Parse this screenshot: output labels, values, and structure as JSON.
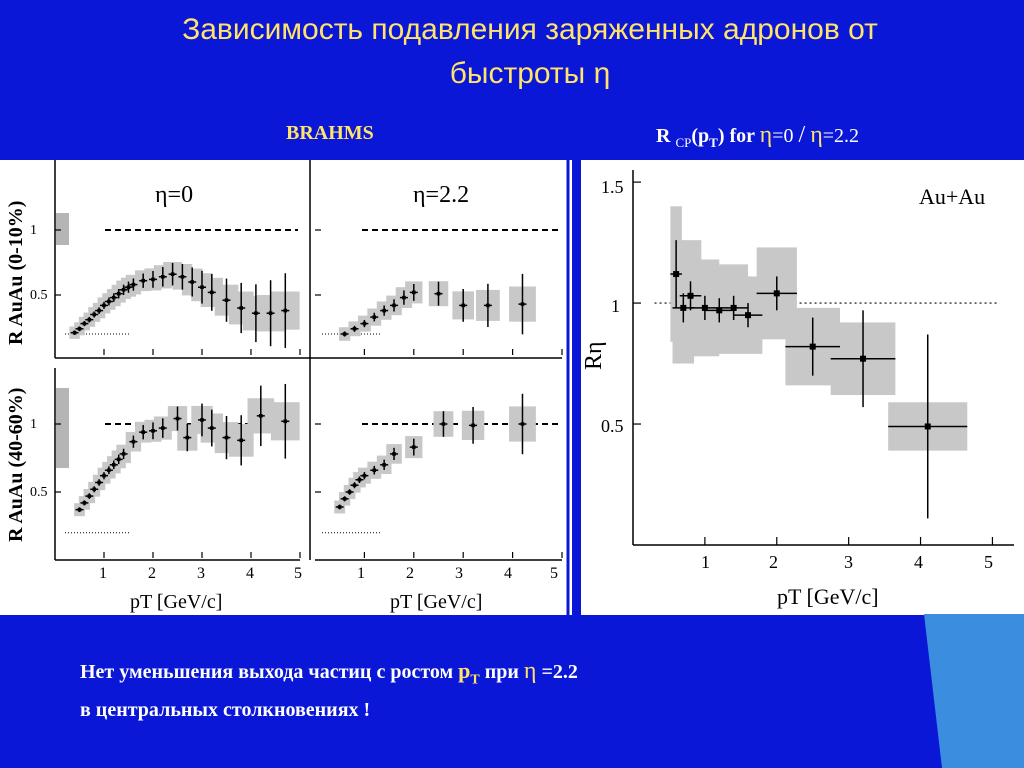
{
  "title": "Зависимость подавления заряженных адронов от быстроты η",
  "header_left": "BRAHMS",
  "header_right": {
    "r": "R",
    "cp": "CP",
    "pt": "(p",
    "t": "T",
    "close_for": ") for",
    "eta": "η",
    "eq0": "=0",
    "slash": "/",
    "eq22": "=2.2"
  },
  "bottom": {
    "line1_a": "Нет уменьшения выхода частиц с ростом",
    "p": "p",
    "t": "T",
    "line1_b": "при",
    "eta": "η",
    "line1_c": "=2.2",
    "line2": "в центральных столкновениях !"
  },
  "colors": {
    "background": "#0a17d6",
    "title": "#ffe36a",
    "band": "#c8c8c8",
    "accent_bar": "#3a8ddf"
  },
  "chart_data": [
    {
      "type": "scatter",
      "panel": "top-left",
      "label": "η=0",
      "ylabel": "R AuAu (0-10%)",
      "yticks": [
        "1",
        "0.5"
      ],
      "ylim": [
        0,
        1.6
      ],
      "xlim": [
        0,
        5
      ],
      "points": [
        {
          "x": 0.4,
          "y": 0.21
        },
        {
          "x": 0.5,
          "y": 0.24
        },
        {
          "x": 0.6,
          "y": 0.28
        },
        {
          "x": 0.7,
          "y": 0.31
        },
        {
          "x": 0.8,
          "y": 0.35
        },
        {
          "x": 0.9,
          "y": 0.38
        },
        {
          "x": 1.0,
          "y": 0.42
        },
        {
          "x": 1.1,
          "y": 0.45
        },
        {
          "x": 1.2,
          "y": 0.48
        },
        {
          "x": 1.3,
          "y": 0.51
        },
        {
          "x": 1.4,
          "y": 0.54
        },
        {
          "x": 1.5,
          "y": 0.56
        },
        {
          "x": 1.6,
          "y": 0.58
        },
        {
          "x": 1.8,
          "y": 0.61
        },
        {
          "x": 2.0,
          "y": 0.62
        },
        {
          "x": 2.2,
          "y": 0.64
        },
        {
          "x": 2.4,
          "y": 0.66
        },
        {
          "x": 2.6,
          "y": 0.64
        },
        {
          "x": 2.8,
          "y": 0.6
        },
        {
          "x": 3.0,
          "y": 0.56
        },
        {
          "x": 3.2,
          "y": 0.52
        },
        {
          "x": 3.5,
          "y": 0.46
        },
        {
          "x": 3.8,
          "y": 0.4
        },
        {
          "x": 4.1,
          "y": 0.36
        },
        {
          "x": 4.4,
          "y": 0.36
        },
        {
          "x": 4.7,
          "y": 0.38
        }
      ]
    },
    {
      "type": "scatter",
      "panel": "top-right",
      "label": "η=2.2",
      "ylim": [
        0,
        1.6
      ],
      "xlim": [
        0,
        5
      ],
      "points": [
        {
          "x": 0.6,
          "y": 0.2
        },
        {
          "x": 0.8,
          "y": 0.24
        },
        {
          "x": 1.0,
          "y": 0.28
        },
        {
          "x": 1.2,
          "y": 0.33
        },
        {
          "x": 1.4,
          "y": 0.38
        },
        {
          "x": 1.6,
          "y": 0.42
        },
        {
          "x": 1.8,
          "y": 0.48
        },
        {
          "x": 2.0,
          "y": 0.52
        },
        {
          "x": 2.5,
          "y": 0.51
        },
        {
          "x": 3.0,
          "y": 0.42
        },
        {
          "x": 3.5,
          "y": 0.42
        },
        {
          "x": 4.2,
          "y": 0.43
        }
      ]
    },
    {
      "type": "scatter",
      "panel": "bottom-left",
      "ylabel": "R AuAu (40-60%)",
      "yticks": [
        "1",
        "0.5"
      ],
      "xlabel": "pT [GeV/c]",
      "xticks": [
        "1",
        "2",
        "3",
        "4",
        "5"
      ],
      "ylim": [
        0,
        1.6
      ],
      "xlim": [
        0,
        5
      ],
      "points": [
        {
          "x": 0.5,
          "y": 0.37
        },
        {
          "x": 0.6,
          "y": 0.42
        },
        {
          "x": 0.7,
          "y": 0.47
        },
        {
          "x": 0.8,
          "y": 0.52
        },
        {
          "x": 0.9,
          "y": 0.57
        },
        {
          "x": 1.0,
          "y": 0.62
        },
        {
          "x": 1.1,
          "y": 0.66
        },
        {
          "x": 1.2,
          "y": 0.7
        },
        {
          "x": 1.3,
          "y": 0.74
        },
        {
          "x": 1.4,
          "y": 0.78
        },
        {
          "x": 1.6,
          "y": 0.87
        },
        {
          "x": 1.8,
          "y": 0.94
        },
        {
          "x": 2.0,
          "y": 0.95
        },
        {
          "x": 2.2,
          "y": 0.97
        },
        {
          "x": 2.5,
          "y": 1.04
        },
        {
          "x": 2.7,
          "y": 0.9
        },
        {
          "x": 3.0,
          "y": 1.03
        },
        {
          "x": 3.2,
          "y": 0.97
        },
        {
          "x": 3.5,
          "y": 0.9
        },
        {
          "x": 3.8,
          "y": 0.88
        },
        {
          "x": 4.2,
          "y": 1.06
        },
        {
          "x": 4.7,
          "y": 1.02
        }
      ]
    },
    {
      "type": "scatter",
      "panel": "bottom-right",
      "xlabel": "pT [GeV/c]",
      "xticks": [
        "1",
        "2",
        "3",
        "4",
        "5"
      ],
      "ylim": [
        0,
        1.6
      ],
      "xlim": [
        0,
        5
      ],
      "points": [
        {
          "x": 0.5,
          "y": 0.39
        },
        {
          "x": 0.6,
          "y": 0.45
        },
        {
          "x": 0.7,
          "y": 0.5
        },
        {
          "x": 0.8,
          "y": 0.55
        },
        {
          "x": 0.9,
          "y": 0.59
        },
        {
          "x": 1.0,
          "y": 0.62
        },
        {
          "x": 1.2,
          "y": 0.66
        },
        {
          "x": 1.4,
          "y": 0.7
        },
        {
          "x": 1.6,
          "y": 0.78
        },
        {
          "x": 2.0,
          "y": 0.83
        },
        {
          "x": 2.6,
          "y": 1.0
        },
        {
          "x": 3.2,
          "y": 0.99
        },
        {
          "x": 4.2,
          "y": 1.0
        }
      ]
    },
    {
      "type": "scatter",
      "panel": "right",
      "label": "Au+Au",
      "ylabel": "Rη",
      "xlabel": "pT [GeV/c]",
      "xticks": [
        "1",
        "2",
        "3",
        "4",
        "5"
      ],
      "yticks": [
        "1.5",
        "1",
        "0.5"
      ],
      "xlim": [
        0,
        5.3
      ],
      "ylim": [
        0,
        1.55
      ],
      "points": [
        {
          "x": 0.6,
          "y": 1.12,
          "err": 0.14,
          "band": 0.28
        },
        {
          "x": 0.7,
          "y": 0.98,
          "err": 0.06,
          "band": 0.23
        },
        {
          "x": 0.8,
          "y": 1.03,
          "err": 0.06,
          "band": 0.23
        },
        {
          "x": 1.0,
          "y": 0.98,
          "err": 0.05,
          "band": 0.2
        },
        {
          "x": 1.2,
          "y": 0.97,
          "err": 0.05,
          "band": 0.18
        },
        {
          "x": 1.4,
          "y": 0.98,
          "err": 0.05,
          "band": 0.18
        },
        {
          "x": 1.6,
          "y": 0.95,
          "err": 0.05,
          "band": 0.16
        },
        {
          "x": 2.0,
          "y": 1.04,
          "err": 0.07,
          "band": 0.19
        },
        {
          "x": 2.5,
          "y": 0.82,
          "err": 0.12,
          "band": 0.16
        },
        {
          "x": 3.2,
          "y": 0.77,
          "err": 0.2,
          "band": 0.15
        },
        {
          "x": 4.1,
          "y": 0.49,
          "err": 0.38,
          "band": 0.1
        }
      ]
    }
  ]
}
